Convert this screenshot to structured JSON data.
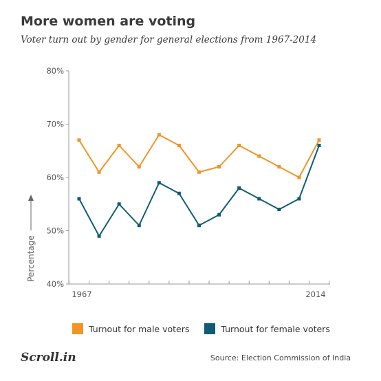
{
  "header": {
    "title": "More women are voting",
    "subtitle": "Voter turn out by gender for general elections from 1967-2014"
  },
  "chart_data": {
    "type": "line",
    "title": "More women are voting",
    "subtitle": "Voter turn out by gender for general elections from 1967-2014",
    "ylabel": "Percentage",
    "xlabel": "",
    "ylim": [
      40,
      80
    ],
    "yticks": [
      "40%",
      "50%",
      "60%",
      "70%",
      "80%"
    ],
    "ytick_values": [
      40,
      50,
      60,
      70,
      80
    ],
    "x_tick_labels": [
      "1967",
      "2014"
    ],
    "x": [
      1,
      2,
      3,
      4,
      5,
      6,
      7,
      8,
      9,
      10,
      11,
      12,
      13
    ],
    "series": [
      {
        "name": "Turnout for male voters",
        "color": "#f39325",
        "values": [
          67,
          61,
          66,
          62,
          68,
          66,
          61,
          62,
          66,
          64,
          62,
          60,
          67
        ]
      },
      {
        "name": "Turnout for female voters",
        "color": "#0f5b78",
        "values": [
          56,
          49,
          55,
          51,
          59,
          57,
          51,
          53,
          58,
          56,
          54,
          56,
          66
        ]
      }
    ],
    "grid": false,
    "legend_position": "bottom"
  },
  "legend": {
    "male": "Turnout for male voters",
    "female": "Turnout for female voters",
    "male_color": "#f39325",
    "female_color": "#0f5b78"
  },
  "footer": {
    "logo": "Scroll.in",
    "source": "Source: Election Commission of India"
  }
}
